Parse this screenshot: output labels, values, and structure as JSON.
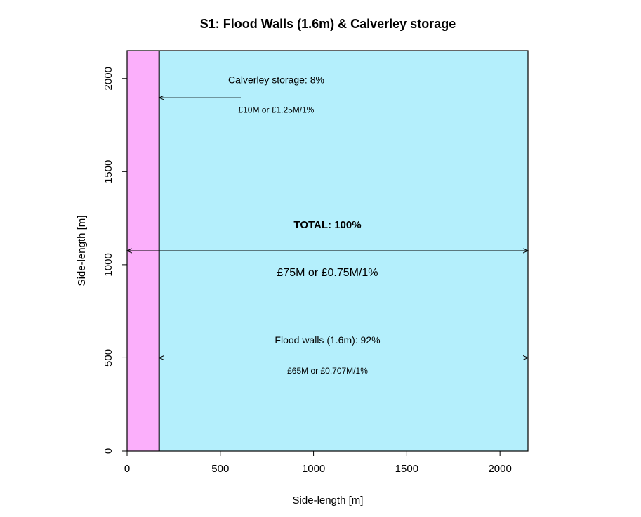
{
  "chart_data": {
    "type": "treemap",
    "title": "S1: Flood Walls (1.6m) & Calverley storage",
    "xlabel": "Side-length [m]",
    "ylabel": "Side-length [m]",
    "xlim": [
      0,
      2150
    ],
    "ylim": [
      0,
      2150
    ],
    "xticks": [
      0,
      500,
      1000,
      1500,
      2000
    ],
    "yticks": [
      0,
      500,
      1000,
      1500,
      2000
    ],
    "grid": false,
    "regions": [
      {
        "name": "Calverley storage",
        "x": [
          0,
          172
        ],
        "y": [
          0,
          2150
        ],
        "color": "#fbaffb"
      },
      {
        "name": "Flood walls (1.6m)",
        "x": [
          172,
          2150
        ],
        "y": [
          0,
          2150
        ],
        "color": "#b4effc"
      }
    ],
    "annotations": [
      {
        "label": "Calverley storage: 8%",
        "cost": "£10M or £1.25M/1%",
        "arrow_y": 1897,
        "arrow_x": [
          172,
          610
        ],
        "label_x": 800,
        "label_y": 1974,
        "cost_y": 1817
      },
      {
        "label": "TOTAL: 100%",
        "cost": "£75M or £0.75M/1%",
        "arrow_y": 1075,
        "arrow_x": [
          0,
          2150
        ],
        "label_x": 1075,
        "label_y": 1195,
        "cost_y": 940
      },
      {
        "label": "Flood walls (1.6m): 92%",
        "cost": "£65M or £0.707M/1%",
        "arrow_y": 500,
        "arrow_x": [
          172,
          2150
        ],
        "label_x": 1075,
        "label_y": 578,
        "cost_y": 415
      }
    ]
  }
}
